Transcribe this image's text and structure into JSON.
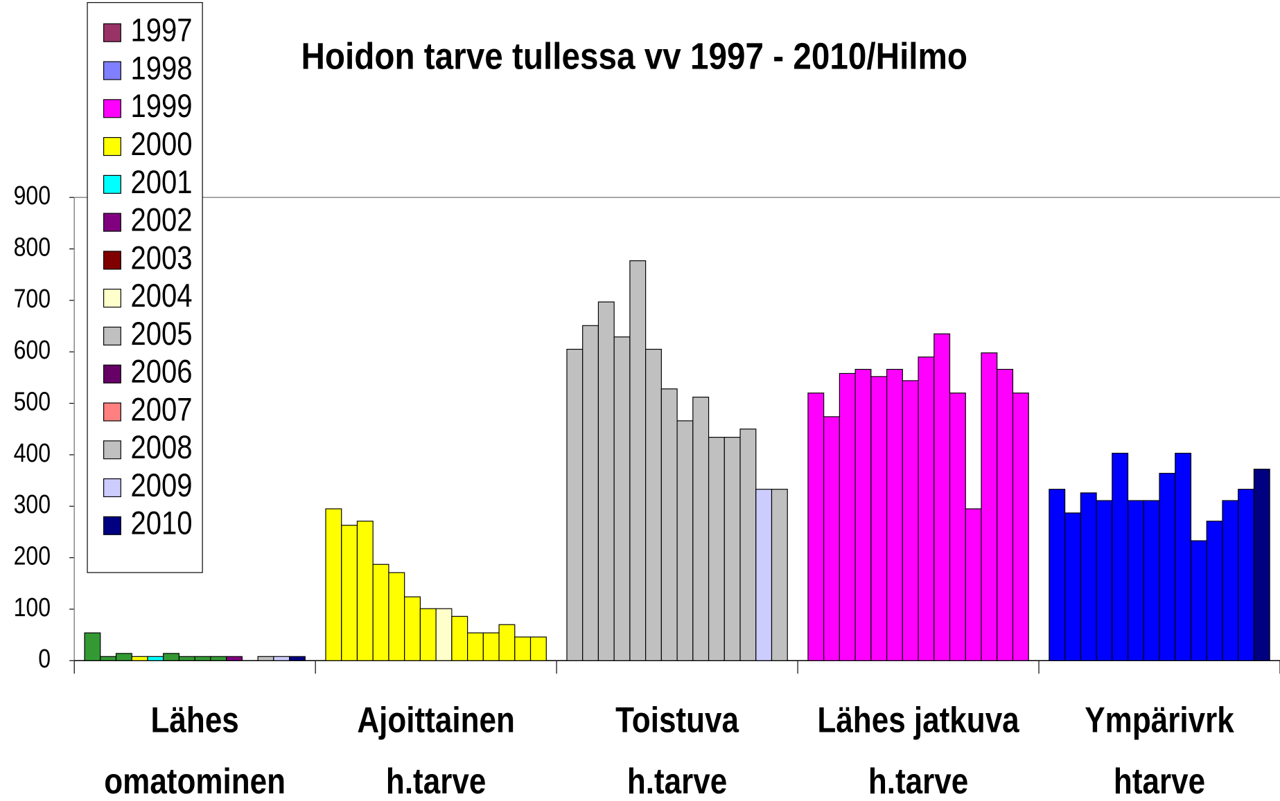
{
  "chart_data": {
    "type": "bar",
    "title": "Hoidon tarve tullessa vv 1997 - 2010/Hilmo",
    "categories": [
      [
        "Lähes",
        "omatominen"
      ],
      [
        "Ajoittainen",
        "h.tarve"
      ],
      [
        "Toistuva",
        "h.tarve"
      ],
      [
        "Lähes jatkuva",
        "h.tarve"
      ],
      [
        "Ympärivrk",
        "htarve"
      ]
    ],
    "ylim": [
      0,
      900
    ],
    "yticks": [
      0,
      100,
      200,
      300,
      400,
      500,
      600,
      700,
      800,
      900
    ],
    "grid": true,
    "legend": "top-left",
    "series": [
      {
        "name": "1997",
        "color": "#993366",
        "bar_colors": [
          "#339933",
          "#ffff00",
          "#c0c0c0",
          "#ff00ff",
          "#0000ff"
        ],
        "values": [
          54,
          295,
          605,
          520,
          333
        ]
      },
      {
        "name": "1998",
        "color": "#8080ff",
        "bar_colors": [
          "#339933",
          "#ffff00",
          "#c0c0c0",
          "#ff00ff",
          "#0000ff"
        ],
        "values": [
          8,
          263,
          651,
          474,
          287
        ]
      },
      {
        "name": "1999",
        "color": "#ff00ff",
        "bar_colors": [
          "#339933",
          "#ffff00",
          "#c0c0c0",
          "#ff00ff",
          "#0000ff"
        ],
        "values": [
          14,
          271,
          697,
          558,
          326
        ]
      },
      {
        "name": "2000",
        "color": "#ffff00",
        "bar_colors": [
          "#ffff00",
          "#ffff00",
          "#c0c0c0",
          "#ff00ff",
          "#0000ff"
        ],
        "values": [
          8,
          187,
          629,
          566,
          311
        ]
      },
      {
        "name": "2001",
        "color": "#00ffff",
        "bar_colors": [
          "#00ffff",
          "#ffff00",
          "#c0c0c0",
          "#ff00ff",
          "#0000ff"
        ],
        "values": [
          8,
          171,
          777,
          552,
          403
        ]
      },
      {
        "name": "2002",
        "color": "#800080",
        "bar_colors": [
          "#339933",
          "#ffff00",
          "#c0c0c0",
          "#ff00ff",
          "#0000ff"
        ],
        "values": [
          14,
          124,
          605,
          566,
          311
        ]
      },
      {
        "name": "2003",
        "color": "#800000",
        "bar_colors": [
          "#339933",
          "#ffff00",
          "#c0c0c0",
          "#ff00ff",
          "#0000ff"
        ],
        "values": [
          8,
          101,
          528,
          544,
          311
        ]
      },
      {
        "name": "2004",
        "color": "#ffffcc",
        "bar_colors": [
          "#339933",
          "#ffffcc",
          "#c0c0c0",
          "#ff00ff",
          "#0000ff"
        ],
        "values": [
          8,
          101,
          466,
          590,
          364
        ]
      },
      {
        "name": "2005",
        "color": "#c0c0c0",
        "bar_colors": [
          "#339933",
          "#ffff00",
          "#c0c0c0",
          "#ff00ff",
          "#0000ff"
        ],
        "values": [
          8,
          86,
          512,
          635,
          403
        ]
      },
      {
        "name": "2006",
        "color": "#660066",
        "bar_colors": [
          "#800080",
          "#ffff00",
          "#c0c0c0",
          "#ff00ff",
          "#0000ff"
        ],
        "values": [
          8,
          54,
          434,
          520,
          233
        ]
      },
      {
        "name": "2007",
        "color": "#ff8080",
        "bar_colors": [
          "#339933",
          "#ffff00",
          "#c0c0c0",
          "#ff00ff",
          "#0000ff"
        ],
        "values": [
          0,
          54,
          434,
          295,
          271
        ]
      },
      {
        "name": "2008",
        "color": "#c0c0c0",
        "bar_colors": [
          "#c0c0c0",
          "#ffff00",
          "#c0c0c0",
          "#ff00ff",
          "#0000ff"
        ],
        "values": [
          8,
          70,
          450,
          598,
          311
        ]
      },
      {
        "name": "2009",
        "color": "#ccccff",
        "bar_colors": [
          "#ccccff",
          "#ffff00",
          "#ccccff",
          "#ff00ff",
          "#0000ff"
        ],
        "values": [
          8,
          46,
          333,
          566,
          333
        ]
      },
      {
        "name": "2010",
        "color": "#000080",
        "bar_colors": [
          "#000080",
          "#ffff00",
          "#c0c0c0",
          "#ff00ff",
          "#000080"
        ],
        "values": [
          8,
          46,
          333,
          520,
          372
        ]
      }
    ]
  }
}
